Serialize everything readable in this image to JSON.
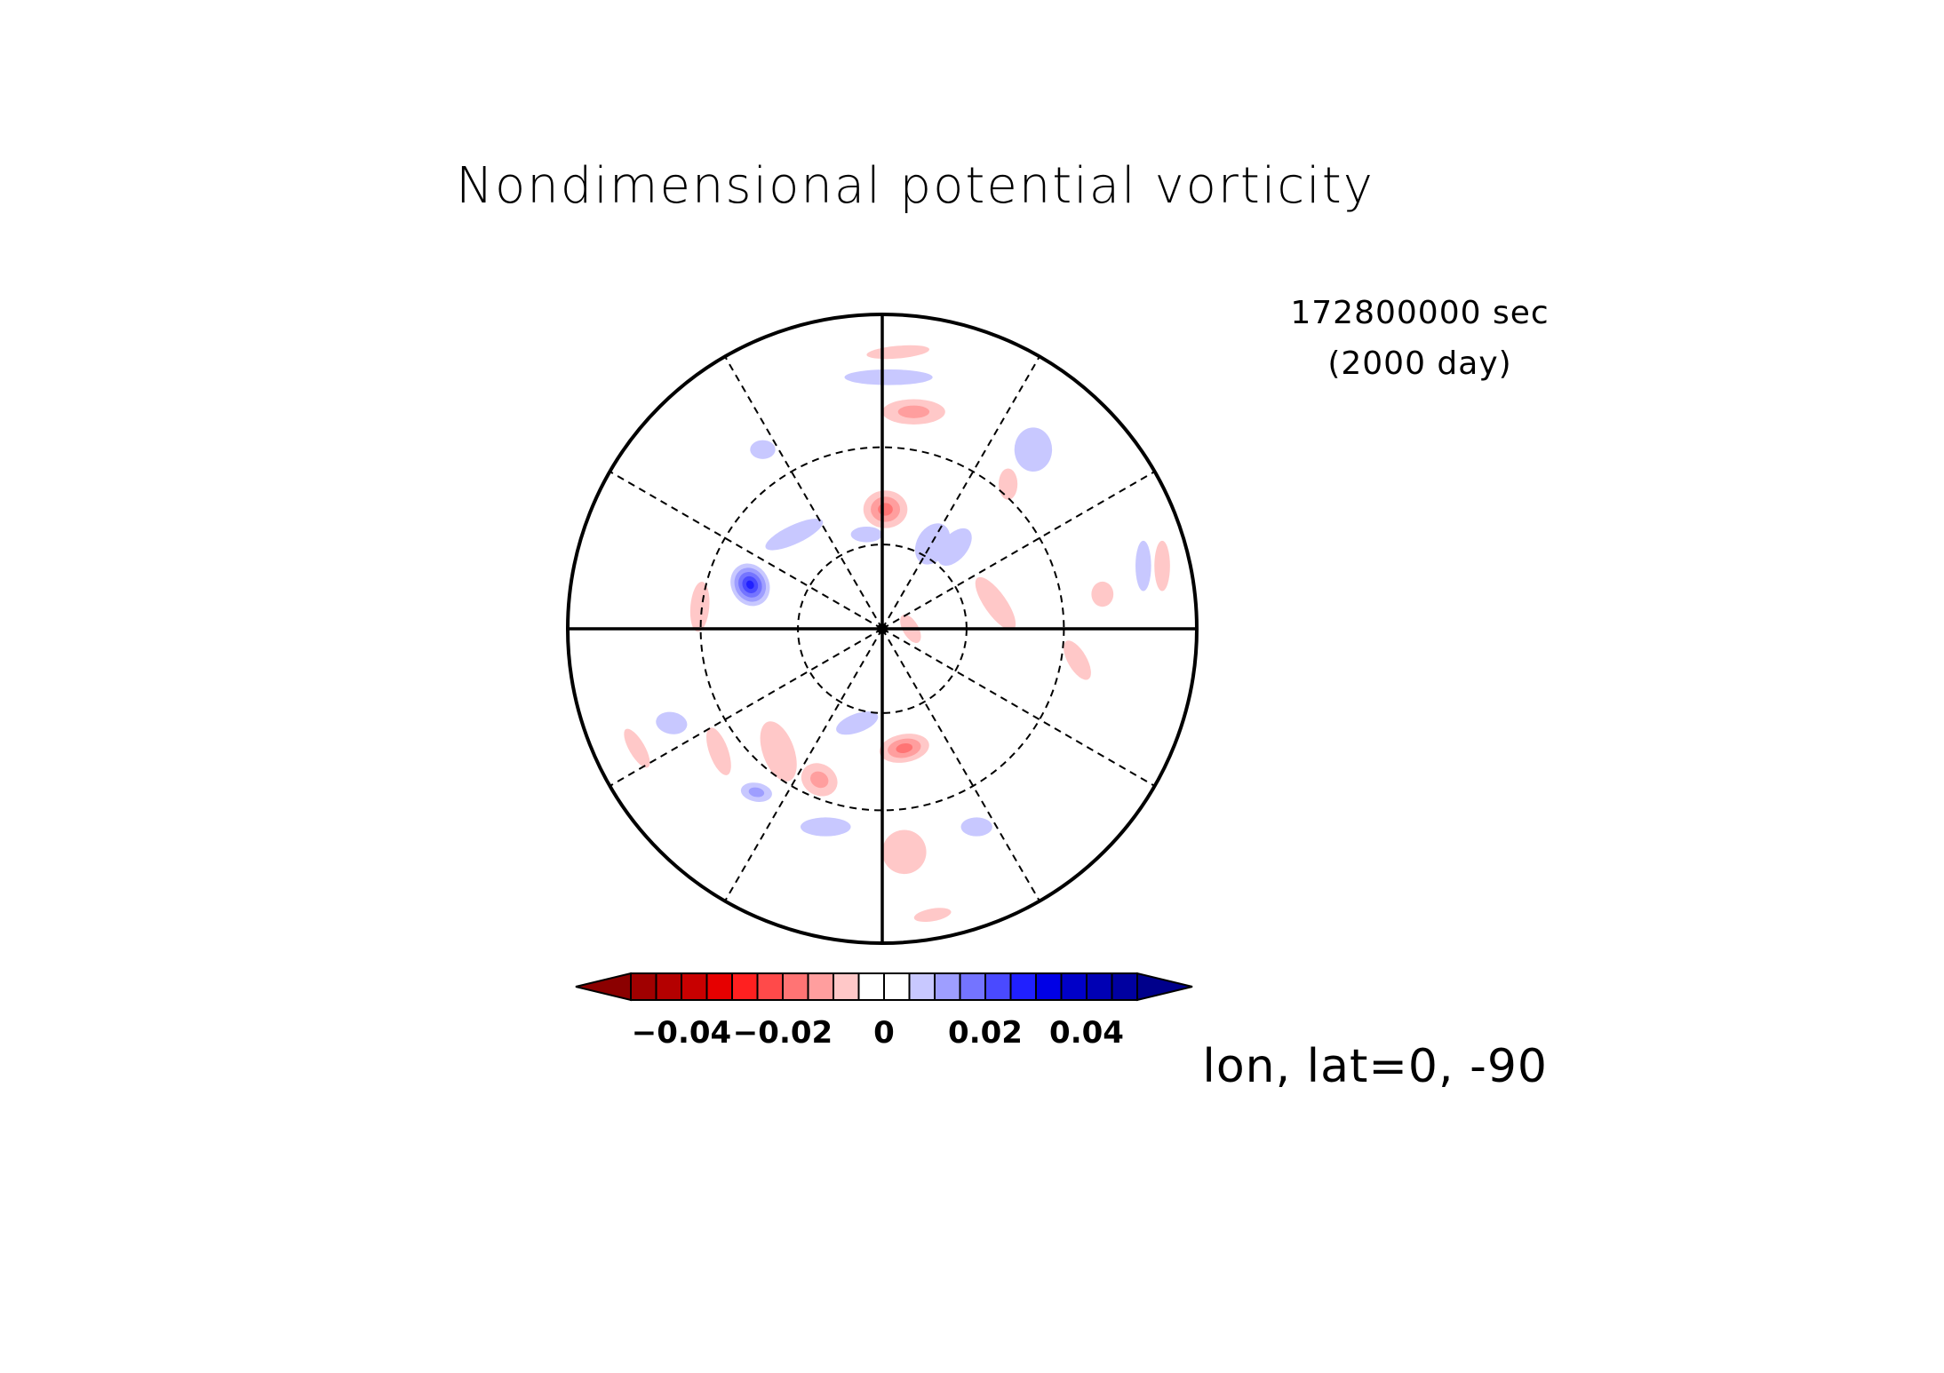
{
  "chart_data": {
    "type": "heatmap",
    "projection": "polar stereographic, south pole",
    "title": "Nondimensional potential vorticity",
    "time_seconds": "172800000 sec",
    "time_days": "(2000 day)",
    "projection_label": "lon, lat=0, -90",
    "colorbar": {
      "tick_labels": [
        "−0.04",
        "−0.02",
        "0",
        "0.02",
        "0.04"
      ],
      "tick_values": [
        -0.04,
        -0.02,
        0,
        0.02,
        0.04
      ],
      "level_min": -0.05,
      "level_max": 0.05,
      "level_step": 0.005,
      "extend": "both",
      "colors": [
        "#8b0000",
        "#a00000",
        "#b40000",
        "#c80000",
        "#e60000",
        "#ff2020",
        "#ff4a4a",
        "#ff7474",
        "#ff9e9e",
        "#ffc8c8",
        "#ffffff",
        "#ffffff",
        "#c8c8ff",
        "#9e9eff",
        "#7474ff",
        "#4a4aff",
        "#2020ff",
        "#0000e6",
        "#0000c8",
        "#0000b4",
        "#0000a0",
        "#00008b"
      ]
    },
    "grid": {
      "meridians_solid_deg": [
        0,
        90,
        180,
        270
      ],
      "meridians_dashed_deg": [
        30,
        60,
        120,
        150,
        210,
        240,
        300,
        330
      ],
      "latitude_circles_dashed_deg": [
        -60,
        -30
      ]
    },
    "blobs": [
      {
        "dx": 0.01,
        "dy": -0.38,
        "rx": 0.07,
        "ry": 0.06,
        "rot": 0,
        "v": -0.015
      },
      {
        "dx": -0.42,
        "dy": -0.14,
        "rx": 0.06,
        "ry": 0.07,
        "rot": -30,
        "v": 0.025
      },
      {
        "dx": 0.07,
        "dy": 0.38,
        "rx": 0.08,
        "ry": 0.045,
        "rot": -10,
        "v": -0.015
      },
      {
        "dx": 0.36,
        "dy": -0.08,
        "rx": 0.1,
        "ry": 0.035,
        "rot": 55,
        "v": -0.008
      },
      {
        "dx": -0.28,
        "dy": -0.3,
        "rx": 0.1,
        "ry": 0.03,
        "rot": -25,
        "v": 0.006
      },
      {
        "dx": 0.16,
        "dy": -0.27,
        "rx": 0.05,
        "ry": 0.07,
        "rot": 30,
        "v": 0.006
      },
      {
        "dx": 0.07,
        "dy": 0.71,
        "rx": 0.07,
        "ry": 0.07,
        "rot": 0,
        "v": -0.008
      },
      {
        "dx": -0.4,
        "dy": 0.52,
        "rx": 0.05,
        "ry": 0.03,
        "rot": 10,
        "v": 0.012
      },
      {
        "dx": 0.1,
        "dy": -0.69,
        "rx": 0.1,
        "ry": 0.04,
        "rot": 0,
        "v": -0.012
      },
      {
        "dx": 0.48,
        "dy": -0.57,
        "rx": 0.06,
        "ry": 0.07,
        "rot": 0,
        "v": 0.007
      },
      {
        "dx": -0.58,
        "dy": -0.07,
        "rx": 0.03,
        "ry": 0.08,
        "rot": 5,
        "v": -0.006
      },
      {
        "dx": 0.62,
        "dy": 0.1,
        "rx": 0.07,
        "ry": 0.03,
        "rot": 60,
        "v": -0.006
      },
      {
        "dx": -0.52,
        "dy": 0.39,
        "rx": 0.03,
        "ry": 0.08,
        "rot": -20,
        "v": -0.006
      },
      {
        "dx": -0.2,
        "dy": 0.48,
        "rx": 0.06,
        "ry": 0.05,
        "rot": 30,
        "v": -0.01
      },
      {
        "dx": 0.4,
        "dy": -0.46,
        "rx": 0.03,
        "ry": 0.05,
        "rot": 0,
        "v": -0.005
      },
      {
        "dx": -0.08,
        "dy": 0.3,
        "rx": 0.07,
        "ry": 0.03,
        "rot": -20,
        "v": 0.005
      },
      {
        "dx": 0.02,
        "dy": -0.8,
        "rx": 0.14,
        "ry": 0.025,
        "rot": 0,
        "v": 0.005
      },
      {
        "dx": 0.05,
        "dy": -0.88,
        "rx": 0.1,
        "ry": 0.02,
        "rot": -5,
        "v": -0.006
      },
      {
        "dx": -0.18,
        "dy": 0.63,
        "rx": 0.08,
        "ry": 0.03,
        "rot": 0,
        "v": 0.005
      },
      {
        "dx": 0.23,
        "dy": -0.26,
        "rx": 0.04,
        "ry": 0.07,
        "rot": 40,
        "v": 0.005
      },
      {
        "dx": -0.33,
        "dy": 0.39,
        "rx": 0.05,
        "ry": 0.1,
        "rot": -20,
        "v": -0.006
      },
      {
        "dx": 0.7,
        "dy": -0.11,
        "rx": 0.035,
        "ry": 0.04,
        "rot": 0,
        "v": -0.005
      },
      {
        "dx": -0.78,
        "dy": 0.38,
        "rx": 0.025,
        "ry": 0.07,
        "rot": -30,
        "v": -0.006
      },
      {
        "dx": 0.89,
        "dy": -0.2,
        "rx": 0.025,
        "ry": 0.08,
        "rot": 0,
        "v": -0.006
      },
      {
        "dx": 0.83,
        "dy": -0.2,
        "rx": 0.025,
        "ry": 0.08,
        "rot": 0,
        "v": 0.004
      },
      {
        "dx": -0.67,
        "dy": 0.3,
        "rx": 0.05,
        "ry": 0.035,
        "rot": 10,
        "v": 0.004
      },
      {
        "dx": -0.05,
        "dy": -0.3,
        "rx": 0.05,
        "ry": 0.025,
        "rot": 0,
        "v": 0.004
      },
      {
        "dx": 0.3,
        "dy": 0.63,
        "rx": 0.05,
        "ry": 0.03,
        "rot": 0,
        "v": 0.004
      },
      {
        "dx": -0.38,
        "dy": -0.57,
        "rx": 0.04,
        "ry": 0.03,
        "rot": 0,
        "v": 0.004
      },
      {
        "dx": 0.16,
        "dy": 0.91,
        "rx": 0.06,
        "ry": 0.02,
        "rot": -10,
        "v": -0.005
      },
      {
        "dx": 0.09,
        "dy": 0.0,
        "rx": 0.05,
        "ry": 0.025,
        "rot": 60,
        "v": -0.006
      }
    ]
  }
}
